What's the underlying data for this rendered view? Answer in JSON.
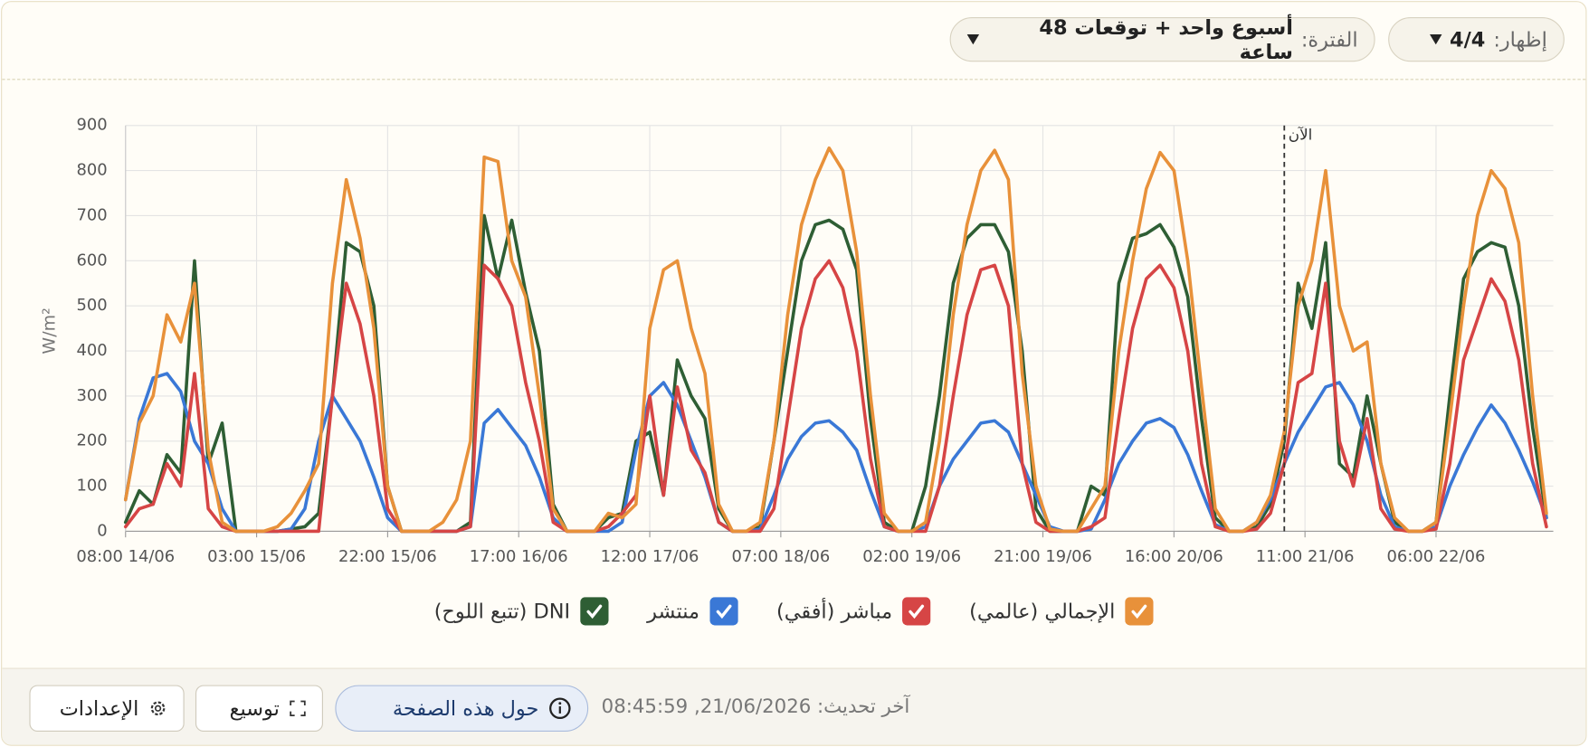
{
  "header": {
    "show": {
      "label": "إظهار:",
      "value": "4/4"
    },
    "period": {
      "label": "الفترة:",
      "value": "أسبوع واحد + توقعات 48 ساعة"
    }
  },
  "chart_data": {
    "type": "line",
    "y_label": "W/m²",
    "x": [
      "08:00 14/06",
      "10:00 14/06",
      "12:00 14/06",
      "14:00 14/06",
      "16:00 14/06",
      "18:00 14/06",
      "20:00 14/06",
      "22:00 14/06",
      "00:00 15/06",
      "02:00 15/06",
      "04:00 15/06",
      "06:00 15/06",
      "08:00 15/06",
      "10:00 15/06",
      "12:00 15/06",
      "14:00 15/06",
      "16:00 15/06",
      "18:00 15/06",
      "20:00 15/06",
      "22:00 15/06",
      "00:00 16/06",
      "02:00 16/06",
      "04:00 16/06",
      "06:00 16/06",
      "08:00 16/06",
      "10:00 16/06",
      "12:00 16/06",
      "14:00 16/06",
      "16:00 16/06",
      "18:00 16/06",
      "20:00 16/06",
      "22:00 16/06",
      "00:00 17/06",
      "02:00 17/06",
      "04:00 17/06",
      "06:00 17/06",
      "08:00 17/06",
      "10:00 17/06",
      "12:00 17/06",
      "14:00 17/06",
      "16:00 17/06",
      "18:00 17/06",
      "20:00 17/06",
      "22:00 17/06",
      "00:00 18/06",
      "02:00 18/06",
      "04:00 18/06",
      "06:00 18/06",
      "08:00 18/06",
      "10:00 18/06",
      "12:00 18/06",
      "14:00 18/06",
      "16:00 18/06",
      "18:00 18/06",
      "20:00 18/06",
      "22:00 18/06",
      "00:00 19/06",
      "02:00 19/06",
      "04:00 19/06",
      "06:00 19/06",
      "08:00 19/06",
      "10:00 19/06",
      "12:00 19/06",
      "14:00 19/06",
      "16:00 19/06",
      "18:00 19/06",
      "20:00 19/06",
      "22:00 19/06",
      "00:00 20/06",
      "02:00 20/06",
      "04:00 20/06",
      "06:00 20/06",
      "08:00 20/06",
      "10:00 20/06",
      "12:00 20/06",
      "14:00 20/06",
      "16:00 20/06",
      "18:00 20/06",
      "20:00 20/06",
      "22:00 20/06",
      "00:00 21/06",
      "02:00 21/06",
      "04:00 21/06",
      "06:00 21/06",
      "08:00 21/06",
      "10:00 21/06",
      "12:00 21/06",
      "14:00 21/06",
      "16:00 21/06",
      "18:00 21/06",
      "20:00 21/06",
      "22:00 21/06",
      "00:00 22/06",
      "02:00 22/06",
      "04:00 22/06",
      "06:00 22/06",
      "08:00 22/06",
      "10:00 22/06",
      "12:00 22/06",
      "14:00 22/06",
      "16:00 22/06",
      "18:00 22/06",
      "20:00 22/06",
      "22:00 22/06"
    ],
    "series": [
      {
        "name": "الإجمالي (عالمي)",
        "color": "#e8913a",
        "values": [
          70,
          240,
          300,
          480,
          420,
          550,
          180,
          20,
          0,
          0,
          0,
          10,
          40,
          90,
          150,
          550,
          780,
          650,
          450,
          100,
          0,
          0,
          0,
          20,
          70,
          200,
          830,
          820,
          600,
          520,
          300,
          50,
          0,
          0,
          0,
          40,
          30,
          60,
          450,
          580,
          600,
          450,
          350,
          60,
          0,
          0,
          20,
          200,
          480,
          680,
          780,
          850,
          800,
          620,
          300,
          40,
          0,
          0,
          20,
          200,
          480,
          680,
          800,
          845,
          780,
          350,
          100,
          5,
          0,
          0,
          50,
          100,
          400,
          600,
          760,
          840,
          800,
          600,
          320,
          50,
          0,
          0,
          20,
          80,
          220,
          500,
          600,
          800,
          500,
          400,
          420,
          150,
          30,
          0,
          0,
          20,
          250,
          500,
          700,
          800,
          760,
          640,
          300,
          40
        ]
      },
      {
        "name": "مباشر (أفقي)",
        "color": "#d64545",
        "values": [
          10,
          50,
          60,
          150,
          100,
          350,
          50,
          10,
          0,
          0,
          0,
          0,
          0,
          0,
          0,
          300,
          550,
          460,
          300,
          50,
          0,
          0,
          0,
          0,
          0,
          10,
          590,
          560,
          500,
          330,
          200,
          20,
          0,
          0,
          0,
          10,
          40,
          80,
          300,
          80,
          320,
          180,
          130,
          20,
          0,
          0,
          0,
          50,
          250,
          450,
          560,
          600,
          540,
          400,
          160,
          10,
          0,
          0,
          0,
          100,
          300,
          480,
          580,
          590,
          500,
          150,
          20,
          0,
          0,
          0,
          10,
          30,
          250,
          450,
          560,
          590,
          540,
          400,
          150,
          10,
          0,
          0,
          5,
          40,
          150,
          330,
          350,
          550,
          200,
          100,
          250,
          50,
          5,
          0,
          0,
          5,
          150,
          380,
          470,
          560,
          510,
          380,
          150,
          10
        ]
      },
      {
        "name": "منتشر",
        "color": "#3a78d6",
        "values": [
          70,
          250,
          340,
          350,
          310,
          200,
          150,
          50,
          0,
          0,
          0,
          0,
          5,
          50,
          200,
          300,
          250,
          200,
          120,
          30,
          0,
          0,
          0,
          0,
          0,
          10,
          240,
          270,
          230,
          190,
          120,
          30,
          0,
          0,
          0,
          0,
          20,
          180,
          300,
          330,
          280,
          200,
          120,
          20,
          0,
          0,
          5,
          80,
          160,
          210,
          240,
          245,
          220,
          180,
          90,
          10,
          0,
          0,
          10,
          100,
          160,
          200,
          240,
          245,
          220,
          150,
          80,
          10,
          0,
          0,
          5,
          70,
          150,
          200,
          240,
          250,
          230,
          170,
          90,
          15,
          0,
          0,
          20,
          70,
          150,
          220,
          270,
          320,
          330,
          280,
          200,
          80,
          10,
          0,
          0,
          10,
          100,
          170,
          230,
          280,
          240,
          180,
          110,
          30
        ]
      },
      {
        "name": "DNI (تتبع اللوح)",
        "color": "#2e5e34",
        "values": [
          20,
          90,
          60,
          170,
          130,
          600,
          150,
          240,
          0,
          0,
          0,
          0,
          5,
          10,
          40,
          300,
          640,
          620,
          500,
          100,
          0,
          0,
          0,
          0,
          0,
          20,
          700,
          560,
          690,
          530,
          400,
          60,
          0,
          0,
          0,
          30,
          40,
          200,
          220,
          80,
          380,
          300,
          250,
          50,
          0,
          0,
          10,
          200,
          400,
          600,
          680,
          690,
          670,
          580,
          250,
          20,
          0,
          0,
          100,
          300,
          550,
          650,
          680,
          680,
          620,
          400,
          50,
          0,
          0,
          0,
          100,
          80,
          550,
          650,
          660,
          680,
          630,
          520,
          250,
          30,
          0,
          0,
          10,
          60,
          200,
          550,
          450,
          640,
          150,
          120,
          300,
          150,
          20,
          0,
          0,
          20,
          300,
          560,
          620,
          640,
          630,
          500,
          230,
          30
        ]
      }
    ],
    "xlim": [
      "08:00 14/06",
      "23:00 22/06"
    ],
    "xticks": [
      "08:00 14/06",
      "03:00 15/06",
      "22:00 15/06",
      "17:00 16/06",
      "12:00 17/06",
      "07:00 18/06",
      "02:00 19/06",
      "21:00 19/06",
      "16:00 20/06",
      "11:00 21/06",
      "06:00 22/06"
    ],
    "ylim": [
      0,
      900
    ],
    "yticks": [
      0,
      100,
      200,
      300,
      400,
      500,
      600,
      700,
      800,
      900
    ],
    "grid": true,
    "now": {
      "label": "الآن",
      "x": "08:00 21/06"
    },
    "legend": "bottom"
  },
  "footer": {
    "last_updated_label": "آخر تحديث:",
    "last_updated": "21/06/2026, 08:45:59",
    "about": "حول هذه الصفحة",
    "expand": "توسيع",
    "settings": "الإعدادات"
  }
}
